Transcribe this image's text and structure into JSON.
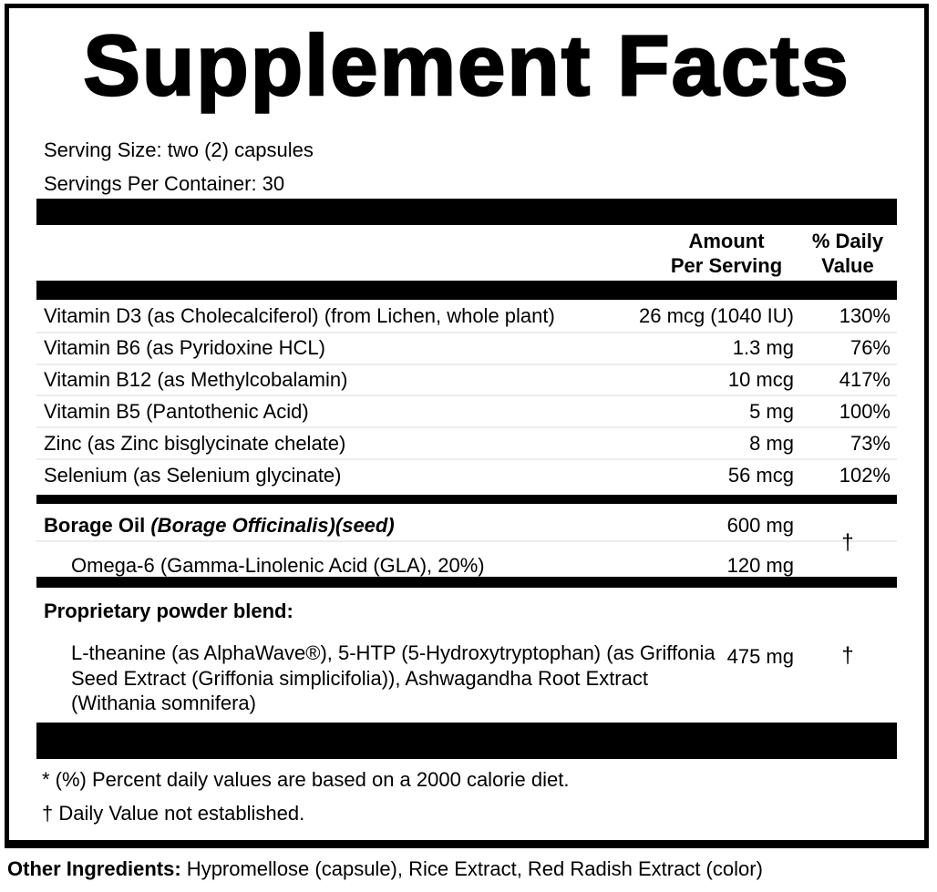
{
  "title": "Supplement Facts",
  "serving_info": {
    "serving_size": "Serving Size: two (2) capsules",
    "servings_per_container": "Servings Per Container: 30"
  },
  "header": {
    "amount_line1": "Amount",
    "amount_line2": "Per Serving",
    "dv_line1": "% Daily",
    "dv_line2": "Value"
  },
  "nutrients": [
    {
      "name": "Vitamin D3 (as Cholecalciferol) (from Lichen, whole plant)",
      "amount": "26 mcg (1040 IU)",
      "dv": "130%"
    },
    {
      "name": "Vitamin B6 (as Pyridoxine HCL)",
      "amount": "1.3 mg",
      "dv": "76%"
    },
    {
      "name": "Vitamin B12 (as Methylcobalamin)",
      "amount": "10 mcg",
      "dv": "417%"
    },
    {
      "name": "Vitamin B5 (Pantothenic Acid)",
      "amount": "5 mg",
      "dv": "100%"
    },
    {
      "name": "Zinc (as Zinc bisglycinate chelate)",
      "amount": "8 mg",
      "dv": "73%"
    },
    {
      "name": "Selenium (as Selenium glycinate)",
      "amount": "56 mcg",
      "dv": "102%"
    }
  ],
  "borage": {
    "name_regular": "Borage Oil ",
    "name_italic": "(Borage Officinalis)(seed)",
    "amount": "600 mg",
    "dv_symbol": "†",
    "sub_name": "Omega-6 (Gamma-Linolenic Acid (GLA), 20%)",
    "sub_amount": "120 mg"
  },
  "blend": {
    "heading": "Proprietary powder blend:",
    "line1": "L-theanine (as AlphaWave®), 5-HTP (5-Hydroxytryptophan) (as Griffonia",
    "line2": "Seed Extract (Griffonia simplicifolia)), Ashwagandha Root Extract",
    "line3": "(Withania somnifera)",
    "amount": "475 mg",
    "dv_symbol": "†"
  },
  "footnotes": {
    "percent_note": "* (%) Percent daily values are based on a 2000 calorie diet.",
    "dagger_note": "† Daily Value not established."
  },
  "other_ingredients": {
    "label": "Other Ingredients:",
    "text": " Hypromellose (capsule), Rice Extract, Red Radish Extract (color)"
  },
  "colors": {
    "ink": "#000000",
    "background": "#ffffff",
    "row_separator": "#ececec"
  }
}
